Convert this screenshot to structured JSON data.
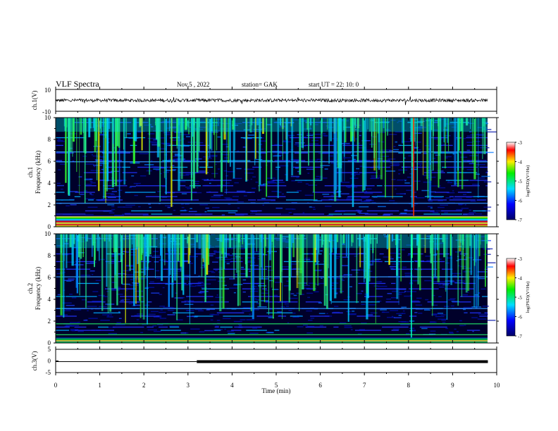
{
  "header": {
    "title": "VLF Spectra",
    "date": "Nov.5 , 2022",
    "station": "station= GAK",
    "start": "start UT = 22: 10: 0"
  },
  "chart_data": [
    {
      "type": "line",
      "name": "ch1-waveform",
      "ylabel": "ch.1(V)",
      "ylim": [
        -10,
        10
      ],
      "ytick_labels": [
        "10",
        "-10"
      ],
      "xlim": [
        0,
        10
      ],
      "description_values": {
        "baseline": 0,
        "noise_amplitude": 1.5
      }
    },
    {
      "type": "heatmap",
      "name": "ch1-spectrogram",
      "ylabel": "ch.1 Frequency (kHz)",
      "ylabel_line1": "ch.1",
      "ylabel_line2": "Frequency (kHz)",
      "ylim": [
        0,
        10
      ],
      "ytick_labels": [
        "0",
        "2",
        "4",
        "6",
        "8",
        "10"
      ],
      "xlim": [
        0,
        10
      ],
      "colorbar": {
        "label": "log(PSD)(V²/Hz)",
        "range": [
          -7,
          -3
        ],
        "ticks": [
          "-3",
          "-4",
          "-5",
          "-6",
          "-7"
        ]
      },
      "horizontal_lines_khz": [
        0.5,
        1.0,
        2.2,
        6.0,
        6.9
      ],
      "strong_vertical_x_min": [
        8.1
      ]
    },
    {
      "type": "heatmap",
      "name": "ch2-spectrogram",
      "ylabel": "ch.2 Frequency (kHz)",
      "ylabel_line1": "ch.2",
      "ylabel_line2": "Frequency (kHz)",
      "ylim": [
        0,
        10
      ],
      "ytick_labels": [
        "0",
        "2",
        "4",
        "6",
        "8",
        "10"
      ],
      "xlim": [
        0,
        10
      ],
      "colorbar": {
        "label": "log(PSD)(V²/Hz)",
        "range": [
          -7,
          -3
        ],
        "ticks": [
          "-3",
          "-4",
          "-5",
          "-6",
          "-7"
        ]
      },
      "horizontal_lines_khz": [
        0.8,
        1.8,
        3.2,
        6.1
      ],
      "strong_vertical_x_min": [
        8.05
      ]
    },
    {
      "type": "line",
      "name": "ch3-signal",
      "ylabel": "ch.3(V)",
      "ylim": [
        -5,
        5
      ],
      "ytick_labels": [
        "5",
        "0",
        "-5"
      ],
      "xlim": [
        0,
        10
      ],
      "x": [
        0,
        3.2,
        3.2,
        9.8
      ],
      "y": [
        0,
        0,
        0,
        0
      ],
      "thick_from": 3.2,
      "xlabel": "Time (min)",
      "xtick_labels": [
        "0",
        "1",
        "2",
        "3",
        "4",
        "5",
        "6",
        "7",
        "8",
        "9",
        "10"
      ]
    }
  ]
}
